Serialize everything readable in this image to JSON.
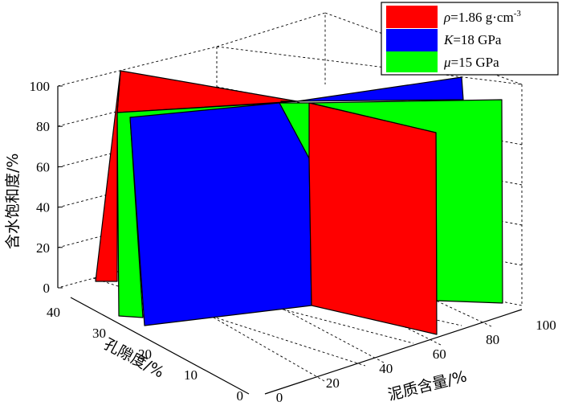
{
  "chart_data": {
    "type": "surface-3d",
    "xlabel": "泥质含量/%",
    "ylabel": "孔隙度/%",
    "zlabel": "含水饱和度/%",
    "x_ticks": [
      0,
      20,
      40,
      60,
      80,
      100
    ],
    "y_ticks": [
      0,
      10,
      20,
      30,
      40
    ],
    "z_ticks": [
      0,
      20,
      40,
      60,
      80,
      100
    ],
    "xlim": [
      0,
      100
    ],
    "ylim": [
      0,
      40
    ],
    "zlim": [
      0,
      100
    ],
    "grid": true,
    "legend_position": "top-right",
    "series": [
      {
        "name_parts": [
          "ρ",
          "=1.86 g·cm",
          "-3"
        ],
        "color": "#ff0000",
        "description": "iso-density surface",
        "constant": "1.86"
      },
      {
        "name_parts": [
          "K",
          "=18 GPa"
        ],
        "color": "#0000ff",
        "description": "iso-bulk-modulus surface",
        "constant": "18"
      },
      {
        "name_parts": [
          "μ",
          "=15 GPa"
        ],
        "color": "#00ff00",
        "description": "iso-shear-modulus surface",
        "constant": "15"
      }
    ]
  }
}
